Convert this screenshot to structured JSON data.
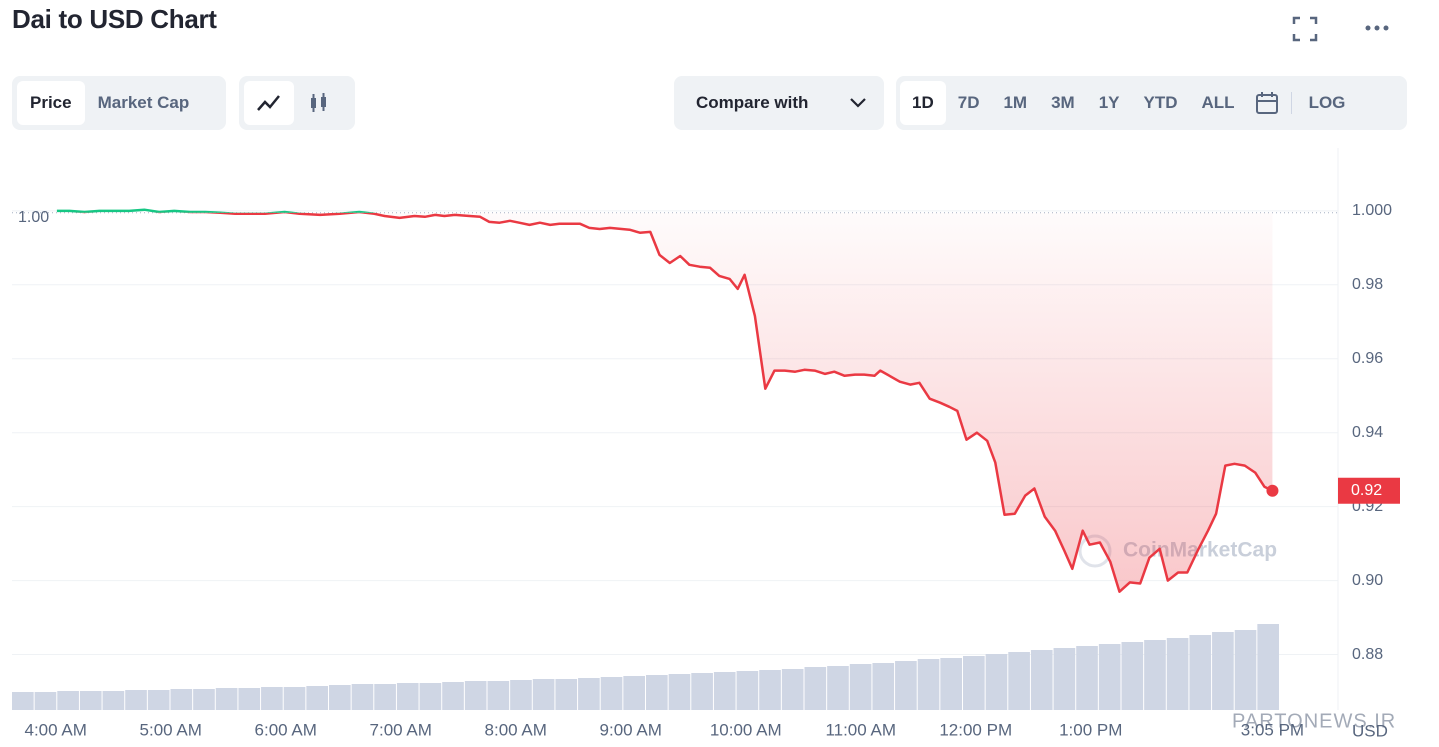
{
  "page": {
    "title": "Dai to USD Chart",
    "tabs": [
      "Price",
      "Market Cap"
    ],
    "compare": "Compare with",
    "ranges": [
      "1D",
      "7D",
      "1M",
      "3M",
      "1Y",
      "YTD",
      "ALL"
    ],
    "log": "LOG",
    "watermark": "CoinMarketCap",
    "site_watermark": "PARTONEWS.IR"
  },
  "chart_data": {
    "type": "line",
    "y_unit": "USD",
    "colors": {
      "up": "#16c784",
      "down": "#ea3943",
      "volume": "#cfd6e4"
    },
    "reference": {
      "value": 0.9995,
      "label": "1.00"
    },
    "price_tag": {
      "label": "0.92"
    },
    "xlim": [
      3.62,
      15.15
    ],
    "xticks": [
      {
        "value": 4,
        "label": "4:00 AM"
      },
      {
        "value": 5,
        "label": "5:00 AM"
      },
      {
        "value": 6,
        "label": "6:00 AM"
      },
      {
        "value": 7,
        "label": "7:00 AM"
      },
      {
        "value": 8,
        "label": "8:00 AM"
      },
      {
        "value": 9,
        "label": "9:00 AM"
      },
      {
        "value": 10,
        "label": "10:00 AM"
      },
      {
        "value": 11,
        "label": "11:00 AM"
      },
      {
        "value": 12,
        "label": "12:00 PM"
      },
      {
        "value": 13,
        "label": "1:00 PM"
      },
      {
        "value": 14.58,
        "label": "3:05 PM"
      }
    ],
    "ylim": [
      0.865,
      1.017
    ],
    "yticks": [
      {
        "value": 1,
        "label": "1.000"
      },
      0.98,
      0.96,
      0.94,
      0.92,
      {
        "value": 0.9,
        "label": "0.90"
      },
      0.88
    ],
    "grid": true,
    "series": [
      {
        "name": "Price",
        "x": [
          4.01,
          4.12,
          4.25,
          4.38,
          4.51,
          4.64,
          4.77,
          4.9,
          5.03,
          5.17,
          5.3,
          5.43,
          5.56,
          5.69,
          5.82,
          5.99,
          6.12,
          6.3,
          6.47,
          6.64,
          6.77,
          6.86,
          6.99,
          7.12,
          7.21,
          7.3,
          7.38,
          7.47,
          7.6,
          7.69,
          7.77,
          7.86,
          7.95,
          8.03,
          8.12,
          8.21,
          8.3,
          8.38,
          8.56,
          8.64,
          8.73,
          8.82,
          8.99,
          9.08,
          9.17,
          9.25,
          9.34,
          9.43,
          9.51,
          9.6,
          9.69,
          9.77,
          9.86,
          9.93,
          9.99,
          10.08,
          10.17,
          10.25,
          10.34,
          10.43,
          10.51,
          10.6,
          10.69,
          10.77,
          10.86,
          10.95,
          11.03,
          11.12,
          11.17,
          11.25,
          11.34,
          11.43,
          11.51,
          11.6,
          11.69,
          11.77,
          11.84,
          11.92,
          12.01,
          12.1,
          12.17,
          12.25,
          12.34,
          12.43,
          12.51,
          12.6,
          12.69,
          12.77,
          12.84,
          12.93,
          12.99,
          13.08,
          13.17,
          13.25,
          13.34,
          13.43,
          13.51,
          13.6,
          13.67,
          13.76,
          13.84,
          13.93,
          14.02,
          14.09,
          14.17,
          14.25,
          14.34,
          14.43,
          14.51,
          14.58
        ],
        "values": [
          1.0,
          1.0,
          0.9997,
          1.0,
          1.0,
          1.0,
          1.0003,
          0.9997,
          1.0,
          0.9997,
          0.9997,
          0.9995,
          0.9992,
          0.9992,
          0.9992,
          0.9997,
          0.9992,
          0.9989,
          0.9992,
          0.9997,
          0.9992,
          0.9986,
          0.9981,
          0.9986,
          0.9984,
          0.9989,
          0.9986,
          0.9989,
          0.9986,
          0.9984,
          0.997,
          0.9968,
          0.9973,
          0.9968,
          0.9962,
          0.9968,
          0.9962,
          0.9965,
          0.9965,
          0.9954,
          0.9951,
          0.9954,
          0.9949,
          0.9941,
          0.9943,
          0.9881,
          0.9859,
          0.9878,
          0.9854,
          0.9849,
          0.9846,
          0.9824,
          0.9816,
          0.9789,
          0.9827,
          0.9716,
          0.9519,
          0.9568,
          0.9568,
          0.9565,
          0.957,
          0.9568,
          0.9559,
          0.9565,
          0.9554,
          0.9557,
          0.9557,
          0.9554,
          0.9568,
          0.9554,
          0.9538,
          0.953,
          0.9535,
          0.9492,
          0.9481,
          0.947,
          0.9459,
          0.9381,
          0.94,
          0.9378,
          0.9319,
          0.9178,
          0.9181,
          0.923,
          0.9249,
          0.9173,
          0.9135,
          0.9081,
          0.9032,
          0.9135,
          0.9097,
          0.9103,
          0.9051,
          0.897,
          0.8995,
          0.8992,
          0.9062,
          0.9086,
          0.9,
          0.9022,
          0.9022,
          0.9081,
          0.9135,
          0.9181,
          0.9311,
          0.9316,
          0.9311,
          0.9292,
          0.9254,
          0.9243
        ]
      }
    ],
    "volume": [
      18,
      18,
      19,
      19,
      19,
      20,
      20,
      21,
      21,
      22,
      22,
      23,
      23,
      24,
      25,
      26,
      26,
      27,
      27,
      28,
      29,
      29,
      30,
      31,
      31,
      32,
      33,
      34,
      35,
      36,
      37,
      38,
      39,
      40,
      41,
      43,
      44,
      46,
      47,
      49,
      51,
      52,
      54,
      56,
      58,
      60,
      62,
      64,
      66,
      68,
      70,
      72,
      75,
      78,
      80,
      86
    ]
  }
}
